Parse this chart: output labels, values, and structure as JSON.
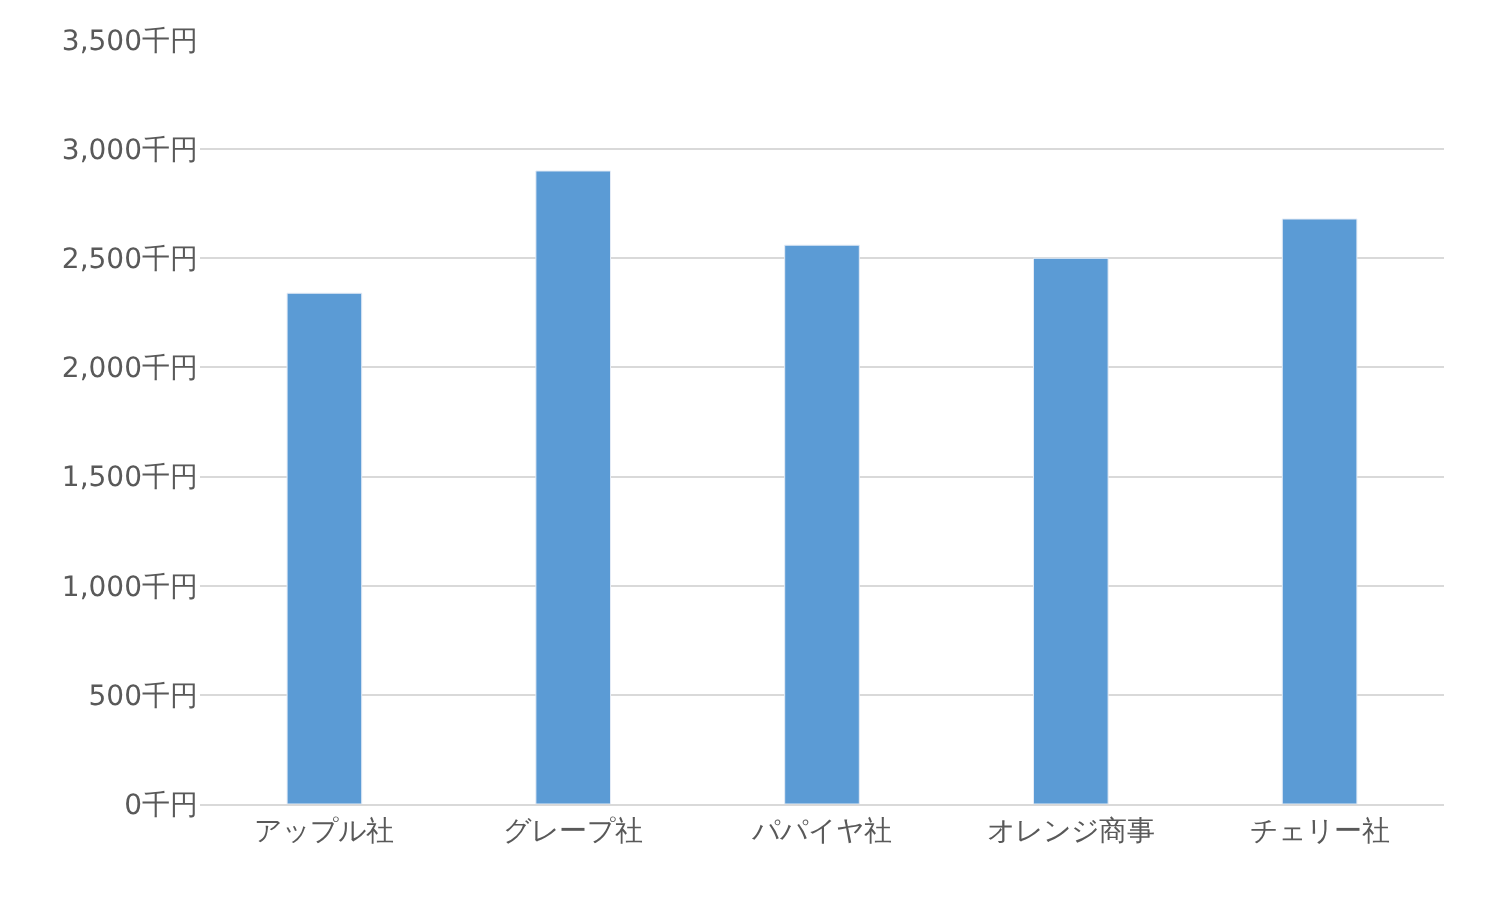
{
  "chart_data": {
    "type": "bar",
    "categories": [
      "アップル社",
      "グレープ社",
      "パパイヤ社",
      "オレンジ商事",
      "チェリー社"
    ],
    "values": [
      2340,
      2900,
      2560,
      2500,
      2680
    ],
    "color": "#5b9bd5",
    "ylim": [
      0,
      3500
    ],
    "yticks": [
      {
        "value": 0,
        "label": "0千円"
      },
      {
        "value": 500,
        "label": "500千円"
      },
      {
        "value": 1000,
        "label": "1,000千円"
      },
      {
        "value": 1500,
        "label": "1,500千円"
      },
      {
        "value": 2000,
        "label": "2,000千円"
      },
      {
        "value": 2500,
        "label": "2,500千円"
      },
      {
        "value": 3000,
        "label": "3,000千円"
      },
      {
        "value": 3500,
        "label": "3,500千円"
      }
    ],
    "grid": "y"
  }
}
